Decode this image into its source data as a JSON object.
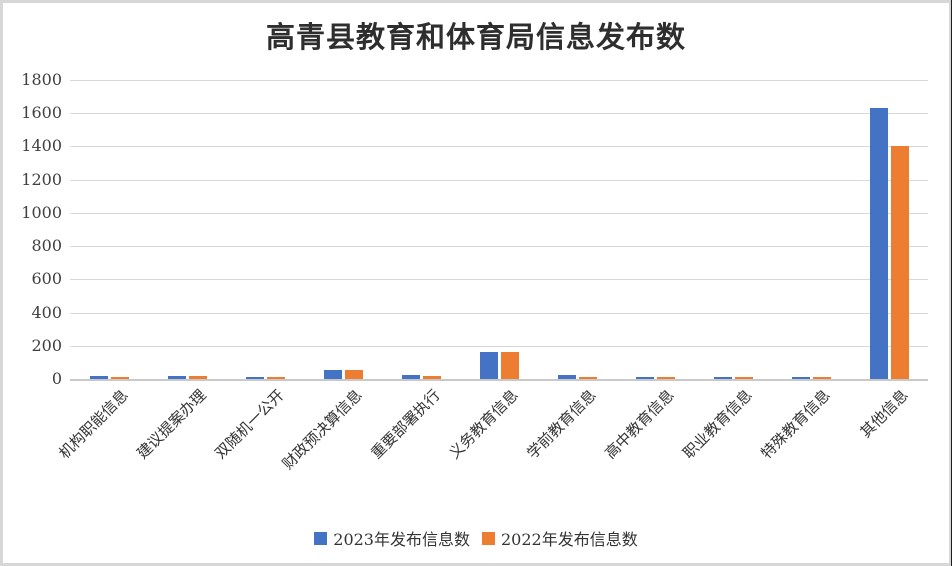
{
  "chart_data": {
    "type": "bar",
    "title": "高青县教育和体育局信息发布数",
    "categories": [
      "机构职能信息",
      "建议提案办理",
      "双随机一公开",
      "财政预决算信息",
      "重要部署执行",
      "义务教育信息",
      "学前教育信息",
      "高中教育信息",
      "职业教育信息",
      "特殊教育信息",
      "其他信息"
    ],
    "series": [
      {
        "name": "2023年发布信息数",
        "color": "#4472C4",
        "values": [
          20,
          20,
          14,
          55,
          22,
          163,
          22,
          14,
          15,
          13,
          1630
        ]
      },
      {
        "name": "2022年发布信息数",
        "color": "#ED7D31",
        "values": [
          12,
          18,
          10,
          52,
          19,
          160,
          12,
          12,
          12,
          11,
          1400
        ]
      }
    ],
    "ylim": [
      0,
      1800
    ],
    "y_ticks": [
      0,
      200,
      400,
      600,
      800,
      1000,
      1200,
      1400,
      1600,
      1800
    ],
    "grid": true,
    "legend_position": "bottom",
    "colors": {
      "gridline": "#D9D9D9",
      "axis_line": "#C9C9C9",
      "tick_text": "#404040",
      "title_text": "#2E2E2E"
    }
  }
}
